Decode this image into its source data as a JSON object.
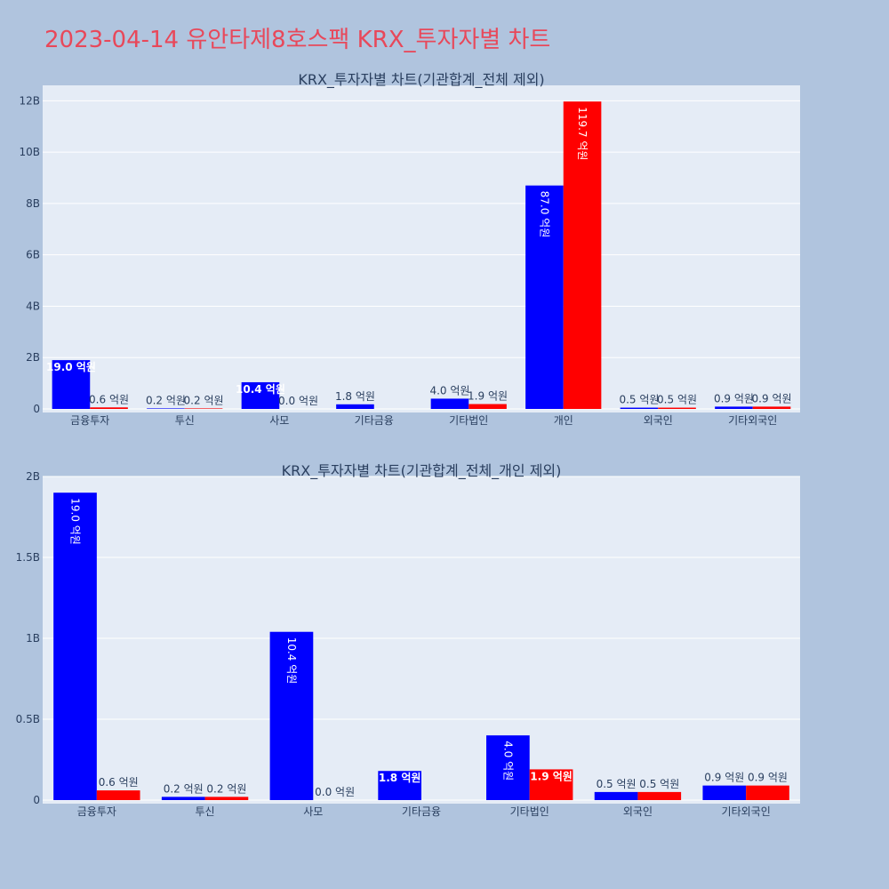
{
  "page": {
    "title": "2023-04-14 유안타제8호스팩 KRX_투자자별 차트",
    "background": "#b0c4de",
    "title_color": "#e8485a",
    "plot_background": "#e5ecf6"
  },
  "chart_data": [
    {
      "type": "bar",
      "title": "KRX_투자자별 차트(기관합계_전체 제외)",
      "categories": [
        "금융투자",
        "투신",
        "사모",
        "기타금융",
        "기타법인",
        "개인",
        "외국인",
        "기타외국인"
      ],
      "ylim": [
        0,
        12600000000
      ],
      "yticks": [
        {
          "value": 0,
          "label": "0"
        },
        {
          "value": 2000000000,
          "label": "2B"
        },
        {
          "value": 4000000000,
          "label": "4B"
        },
        {
          "value": 6000000000,
          "label": "6B"
        },
        {
          "value": 8000000000,
          "label": "8B"
        },
        {
          "value": 10000000000,
          "label": "10B"
        },
        {
          "value": 12000000000,
          "label": "12B"
        }
      ],
      "series": [
        {
          "color": "#0000ff",
          "values": [
            1900000000,
            20000000,
            1040000000,
            180000000,
            400000000,
            8700000000,
            50000000,
            90000000
          ],
          "labels": [
            "19.0 억원",
            "0.2 억원",
            "10.4 억원",
            "1.8 억원",
            "4.0 억원",
            "87.0 억원",
            "0.5 억원",
            "0.9 억원"
          ]
        },
        {
          "color": "#ff0000",
          "values": [
            60000000,
            20000000,
            0,
            null,
            190000000,
            11970000000,
            50000000,
            90000000
          ],
          "labels": [
            "0.6 억원",
            "0.2 억원",
            "0.0 억원",
            "",
            "1.9 억원",
            "119.7 억원",
            "0.5 억원",
            "0.9 억원"
          ]
        }
      ]
    },
    {
      "type": "bar",
      "title": "KRX_투자자별 차트(기관합계_전체_개인 제외)",
      "categories": [
        "금융투자",
        "투신",
        "사모",
        "기타금융",
        "기타법인",
        "외국인",
        "기타외국인"
      ],
      "ylim": [
        0,
        2000000000
      ],
      "yticks": [
        {
          "value": 0,
          "label": "0"
        },
        {
          "value": 500000000,
          "label": "0.5B"
        },
        {
          "value": 1000000000,
          "label": "1B"
        },
        {
          "value": 1500000000,
          "label": "1.5B"
        },
        {
          "value": 2000000000,
          "label": "2B"
        }
      ],
      "series": [
        {
          "color": "#0000ff",
          "values": [
            1900000000,
            20000000,
            1040000000,
            180000000,
            400000000,
            50000000,
            90000000
          ],
          "labels": [
            "19.0 억원",
            "0.2 억원",
            "10.4 억원",
            "1.8 억원",
            "4.0 억원",
            "0.5 억원",
            "0.9 억원"
          ]
        },
        {
          "color": "#ff0000",
          "values": [
            60000000,
            20000000,
            0,
            null,
            190000000,
            50000000,
            90000000
          ],
          "labels": [
            "0.6 억원",
            "0.2 억원",
            "0.0 억원",
            "",
            "1.9 억원",
            "0.5 억원",
            "0.9 억원"
          ]
        }
      ]
    }
  ]
}
